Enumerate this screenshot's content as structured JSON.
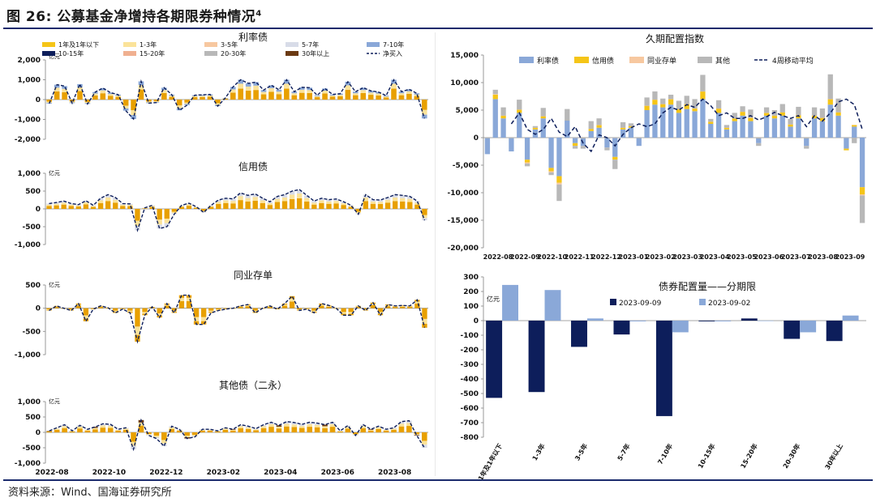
{
  "header": {
    "title": "图 26: 公募基金净增持各期限券种情况",
    "footnote": "4"
  },
  "footer": {
    "source": "资料来源：Wind、国海证券研究所"
  },
  "colors": {
    "navy": "#0d1e5b",
    "yellow": "#f5c518",
    "gold": "#e8a000",
    "lightyellow": "#fbe39a",
    "orange_light": "#f7c8a0",
    "salmon": "#f0b090",
    "brown": "#6b3a13",
    "blue": "#8aa8d8",
    "lightgray": "#d8dce8",
    "gray": "#b8b8b8",
    "dash": "#0d1e5b"
  },
  "chart_data": [
    {
      "id": "rate",
      "type": "bar",
      "title": "利率债",
      "unit": "亿元",
      "ylim": [
        -2000,
        2000
      ],
      "yticks": [
        "2,000",
        "1,000",
        "0",
        "-1,000",
        "-2,000"
      ],
      "ytick_values": [
        2000,
        1000,
        0,
        -1000,
        -2000
      ],
      "legend": [
        "1年及1年以下",
        "1-3年",
        "3-5年",
        "5-7年",
        "7-10年",
        "10-15年",
        "15-20年",
        "20-30年",
        "30年以上",
        "净买入"
      ],
      "values": [
        -200,
        750,
        680,
        -180,
        780,
        -220,
        380,
        580,
        350,
        250,
        -560,
        -980,
        920,
        -180,
        -150,
        600,
        250,
        -540,
        -280,
        220,
        240,
        260,
        -330,
        80,
        640,
        1000,
        820,
        880,
        480,
        720,
        500,
        1000,
        400,
        620,
        600,
        220,
        560,
        260,
        300,
        900,
        400,
        600,
        440,
        380,
        200,
        1000,
        400,
        520,
        320,
        -950
      ]
    },
    {
      "id": "credit",
      "type": "bar",
      "title": "信用债",
      "unit": "亿元",
      "ylim": [
        -1000,
        1000
      ],
      "yticks": [
        "1,000",
        "500",
        "0",
        "-500",
        "-1,000"
      ],
      "ytick_values": [
        1000,
        500,
        0,
        -500,
        -1000
      ],
      "values": [
        150,
        180,
        220,
        150,
        120,
        230,
        100,
        300,
        400,
        320,
        150,
        140,
        -600,
        30,
        100,
        -550,
        -500,
        -150,
        100,
        160,
        60,
        -100,
        100,
        250,
        300,
        280,
        450,
        380,
        420,
        300,
        200,
        350,
        400,
        500,
        540,
        380,
        220,
        300,
        260,
        280,
        200,
        100,
        -150,
        400,
        260,
        250,
        320,
        400,
        380,
        350,
        220,
        -320
      ]
    },
    {
      "id": "ncd",
      "type": "bar",
      "title": "同业存单",
      "unit": "亿元",
      "ylim": [
        -1000,
        500
      ],
      "yticks": [
        "500",
        "0",
        "-500",
        "-1,000"
      ],
      "ytick_values": [
        500,
        0,
        -500,
        -1000
      ],
      "values": [
        -50,
        50,
        0,
        -50,
        100,
        -280,
        -20,
        50,
        10,
        -100,
        -20,
        -100,
        -720,
        -150,
        30,
        -200,
        100,
        -100,
        280,
        280,
        -350,
        -350,
        -100,
        -50,
        -20,
        0,
        50,
        80,
        -100,
        0,
        50,
        -20,
        100,
        260,
        -50,
        -20,
        -100,
        100,
        60,
        0,
        -150,
        -150,
        50,
        -50,
        120,
        -150,
        80,
        50,
        60,
        50,
        180,
        -420
      ]
    },
    {
      "id": "other",
      "type": "bar",
      "title": "其他债（二永）",
      "unit": "亿元",
      "ylim": [
        -1000,
        1000
      ],
      "yticks": [
        "1,000",
        "500",
        "0",
        "-500",
        "-1,000"
      ],
      "ytick_values": [
        1000,
        500,
        0,
        -500,
        -1000
      ],
      "xlabels": [
        "2022-08",
        "2022-10",
        "2022-12",
        "2023-02",
        "2023-04",
        "2023-06",
        "2023-08"
      ],
      "values": [
        50,
        150,
        250,
        50,
        230,
        100,
        180,
        280,
        260,
        100,
        150,
        -550,
        400,
        -100,
        -200,
        -450,
        200,
        100,
        -200,
        -150,
        100,
        100,
        50,
        150,
        100,
        250,
        200,
        120,
        250,
        330,
        230,
        350,
        320,
        260,
        330,
        300,
        250,
        330,
        50,
        220,
        -100,
        250,
        100,
        200,
        100,
        150,
        350,
        380,
        -100,
        -500
      ]
    },
    {
      "id": "duration",
      "type": "stacked_bar_line",
      "title": "久期配置指数",
      "ylim": [
        -20000,
        15000
      ],
      "yticks": [
        "15,000",
        "10,000",
        "5,000",
        "0",
        "-5,000",
        "-10,000",
        "-15,000",
        "-20,000"
      ],
      "ytick_values": [
        15000,
        10000,
        5000,
        0,
        -5000,
        -10000,
        -15000,
        -20000
      ],
      "xlabels": [
        "2022-08",
        "2022-09",
        "2022-10",
        "2022-11",
        "2022-12",
        "2023-01",
        "2023-02",
        "2023-03",
        "2023-04",
        "2023-05",
        "2023-06",
        "2023-07",
        "2023-08",
        "2023-09"
      ],
      "legend": [
        "利率债",
        "信用债",
        "同业存单",
        "其他",
        "4周移动平均"
      ],
      "series": [
        {
          "name": "利率债",
          "values": [
            -3000,
            7000,
            3500,
            -2500,
            4500,
            -4000,
            1500,
            3500,
            -5500,
            -7000,
            3200,
            -1000,
            -1500,
            1200,
            1800,
            -1800,
            -3500,
            1500,
            1800,
            -1500,
            5000,
            6000,
            5500,
            6000,
            4500,
            5200,
            4800,
            7000,
            2500,
            4500,
            1500,
            3000,
            4000,
            3000,
            -1000,
            4000,
            3500,
            4000,
            2000,
            3500,
            -1500,
            3500,
            3000,
            6000,
            4000,
            -2000,
            2000,
            -9000
          ]
        },
        {
          "name": "信用债",
          "values": [
            0,
            800,
            500,
            0,
            600,
            -500,
            300,
            400,
            -600,
            -1200,
            0,
            -500,
            0,
            400,
            500,
            0,
            -500,
            300,
            300,
            0,
            800,
            900,
            600,
            1000,
            700,
            900,
            500,
            1400,
            400,
            800,
            300,
            500,
            700,
            600,
            0,
            500,
            500,
            600,
            400,
            600,
            0,
            500,
            600,
            1000,
            600,
            -300,
            300,
            -1300
          ]
        },
        {
          "name": "同业存单",
          "values": [
            0,
            100,
            0,
            0,
            0,
            -200,
            0,
            0,
            -200,
            -300,
            0,
            0,
            0,
            0,
            0,
            0,
            0,
            0,
            0,
            0,
            0,
            0,
            0,
            0,
            0,
            0,
            0,
            0,
            0,
            0,
            0,
            0,
            0,
            0,
            0,
            0,
            0,
            0,
            0,
            0,
            0,
            0,
            0,
            0,
            0,
            0,
            0,
            -200
          ]
        },
        {
          "name": "其他",
          "values": [
            0,
            800,
            1500,
            0,
            1800,
            -500,
            300,
            1500,
            -500,
            -3000,
            2000,
            -500,
            -500,
            1400,
            1200,
            -500,
            -1700,
            1000,
            500,
            0,
            1500,
            1500,
            1000,
            800,
            1500,
            1500,
            1700,
            3000,
            500,
            1500,
            500,
            1000,
            1000,
            1500,
            -500,
            1000,
            1000,
            1500,
            1000,
            1500,
            -500,
            1500,
            1700,
            4500,
            2500,
            0,
            -1000,
            -5000
          ]
        }
      ],
      "ma4": [
        null,
        null,
        null,
        2500,
        4500,
        1500,
        600,
        1500,
        3500,
        1000,
        200,
        2000,
        -1000,
        -2500,
        500,
        0,
        -1500,
        600,
        1800,
        2500,
        2000,
        2500,
        4500,
        5500,
        5000,
        6000,
        5500,
        7000,
        5800,
        4000,
        4500,
        3500,
        3500,
        4000,
        3200,
        3800,
        4600,
        4000,
        3500,
        4000,
        2000,
        4000,
        3000,
        4500,
        6500,
        7000,
        6000,
        1500
      ]
    },
    {
      "id": "maturity",
      "type": "grouped_bar",
      "title": "债券配置量——分期限",
      "unit": "亿元",
      "ylim": [
        -800,
        300
      ],
      "yticks": [
        "300",
        "200",
        "100",
        "0",
        "-100",
        "-200",
        "-300",
        "-400",
        "-500",
        "-600",
        "-700",
        "-800"
      ],
      "ytick_values": [
        300,
        200,
        100,
        0,
        -100,
        -200,
        -300,
        -400,
        -500,
        -600,
        -700,
        -800
      ],
      "categories": [
        "1年及1年以下",
        "1-3年",
        "3-5年",
        "5-7年",
        "7-10年",
        "10-15年",
        "15-20年",
        "20-30年",
        "30年以上"
      ],
      "series": [
        {
          "name": "2023-09-09",
          "values": [
            -530,
            -490,
            -180,
            -95,
            -655,
            -5,
            15,
            -125,
            -140
          ]
        },
        {
          "name": "2023-09-02",
          "values": [
            245,
            210,
            15,
            -5,
            -80,
            -5,
            0,
            -80,
            35
          ]
        }
      ]
    }
  ]
}
